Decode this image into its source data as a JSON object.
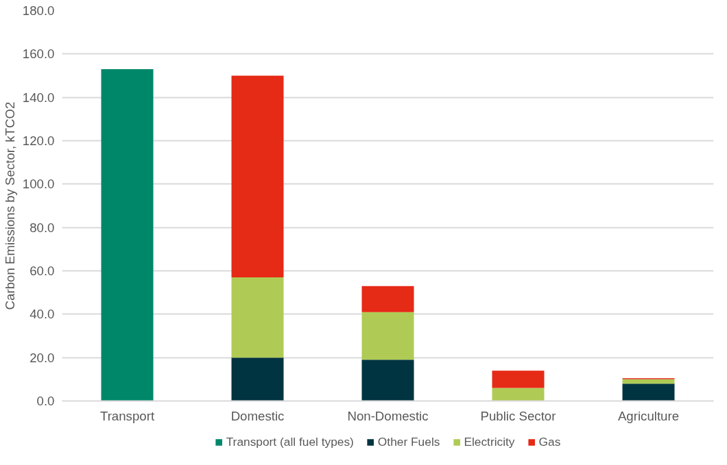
{
  "chart_data": {
    "type": "bar",
    "stacked": true,
    "ylabel": "Carbon Emissions by Sector, kTCO2",
    "categories": [
      "Transport",
      "Domestic",
      "Non-Domestic",
      "Public Sector",
      "Agriculture"
    ],
    "series": [
      {
        "name": "Transport (all fuel types)",
        "color": "#00876a",
        "values": [
          153,
          null,
          null,
          null,
          null
        ]
      },
      {
        "name": "Other Fuels",
        "color": "#003440",
        "values": [
          null,
          20,
          19,
          null,
          8
        ]
      },
      {
        "name": "Electricity",
        "color": "#afcb55",
        "values": [
          null,
          37,
          22,
          6,
          2
        ]
      },
      {
        "name": "Gas",
        "color": "#e52a16",
        "values": [
          null,
          93,
          12,
          8,
          0.5
        ]
      }
    ],
    "ylim": [
      0,
      180
    ],
    "yticks": [
      {
        "value": 0,
        "label": "0.0"
      },
      {
        "value": 20,
        "label": "20.0"
      },
      {
        "value": 40,
        "label": "40.0"
      },
      {
        "value": 60,
        "label": "60.0"
      },
      {
        "value": 80,
        "label": "80.0"
      },
      {
        "value": 100,
        "label": "100.0"
      },
      {
        "value": 120,
        "label": "120.0"
      },
      {
        "value": 140,
        "label": "140.0"
      },
      {
        "value": 160,
        "label": "160.0"
      },
      {
        "value": 180,
        "label": "180.0"
      }
    ],
    "grid": "y",
    "legend": "bottom"
  }
}
